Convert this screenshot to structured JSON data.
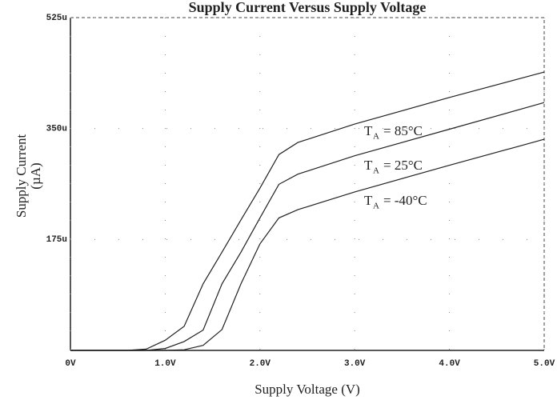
{
  "chart_data": {
    "type": "line",
    "title": "Supply Current Versus Supply Voltage",
    "x_label": "Supply Voltage (V)",
    "y_label": [
      "Supply Current",
      "(µA)"
    ],
    "x": [
      0,
      0.6,
      0.8,
      1.0,
      1.2,
      1.4,
      1.6,
      1.8,
      2.0,
      2.2,
      2.4,
      3.0,
      4.0,
      5.0
    ],
    "series": [
      {
        "color": "#222222",
        "values": [
          0,
          0,
          2,
          16,
          38,
          105,
          155,
          206,
          256,
          309,
          328,
          357,
          399,
          439
        ]
      },
      {
        "color": "#222222",
        "values": [
          0,
          0,
          0,
          3,
          14,
          32,
          105,
          155,
          209,
          262,
          278,
          307,
          349,
          391
        ]
      },
      {
        "color": "#222222",
        "values": [
          0,
          0,
          0,
          0,
          1,
          8,
          33,
          105,
          168,
          209,
          222,
          250,
          292,
          333
        ]
      }
    ],
    "annotations": [
      {
        "symbol": "T",
        "subscript": "A",
        "text": "= 85°C"
      },
      {
        "symbol": "T",
        "subscript": "A",
        "text": "= 25°C"
      },
      {
        "symbol": "T",
        "subscript": "A",
        "text": "= -40°C"
      }
    ],
    "xlim": [
      0,
      5
    ],
    "xticks": [
      {
        "value": 0,
        "label": "0V"
      },
      {
        "value": 1,
        "label": "1.0V"
      },
      {
        "value": 2,
        "label": "2.0V"
      },
      {
        "value": 3,
        "label": "3.0V"
      },
      {
        "value": 4,
        "label": "4.0V"
      },
      {
        "value": 5,
        "label": "5.0V"
      }
    ],
    "ylim": [
      0,
      525
    ],
    "yticks": [
      {
        "value": 175,
        "label": "175u"
      },
      {
        "value": 350,
        "label": "350u"
      },
      {
        "value": 525,
        "label": "525u"
      }
    ],
    "grid": true
  }
}
